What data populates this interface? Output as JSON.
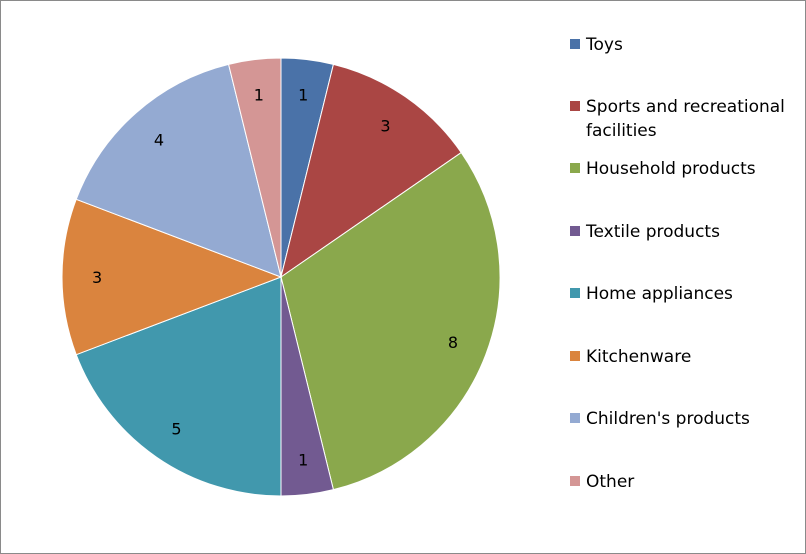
{
  "chart_data": {
    "type": "pie",
    "title": "",
    "slices": [
      {
        "label": "Toys",
        "value": 1,
        "color": "#4a72a8"
      },
      {
        "label": "Sports and recreational facilities",
        "value": 3,
        "color": "#aa4644"
      },
      {
        "label": "Household products",
        "value": 8,
        "color": "#8aa84c"
      },
      {
        "label": "Textile products",
        "value": 1,
        "color": "#725a91"
      },
      {
        "label": "Home appliances",
        "value": 5,
        "color": "#4198ad"
      },
      {
        "label": "Kitchenware",
        "value": 3,
        "color": "#da843e"
      },
      {
        "label": "Children's products",
        "value": 4,
        "color": "#94aad2"
      },
      {
        "label": "Other",
        "value": 1,
        "color": "#d49695"
      }
    ],
    "legend_position": "right"
  }
}
